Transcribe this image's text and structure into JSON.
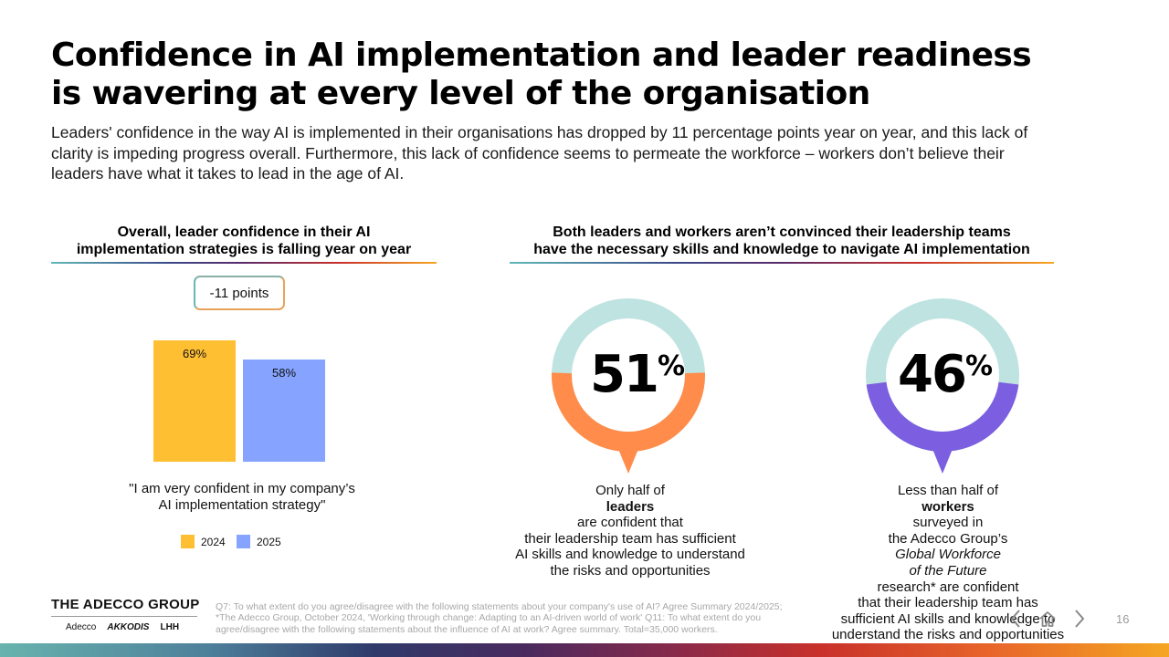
{
  "title": {
    "line1": "Confidence in AI implementation and leader readiness",
    "line2": "is wavering at every level of the organisation"
  },
  "intro": "Leaders' confidence in the way AI is implemented in their organisations has dropped by 11 percentage points year on year, and this lack of clarity is impeding progress overall. Furthermore, this lack of confidence seems to permeate the workforce – workers don’t believe their leaders have what it takes to lead in the age of AI.",
  "left_section": {
    "heading_line1": "Overall, leader confidence in their AI",
    "heading_line2": "implementation strategies is falling year on year",
    "change_pill": "-11 points",
    "quote_line1": "\"I am very confident in my company’s",
    "quote_line2": "AI implementation strategy\"",
    "legend": [
      {
        "label": "2024",
        "color": "#FFBF33"
      },
      {
        "label": "2025",
        "color": "#85A3FF"
      }
    ]
  },
  "chart_data": {
    "type": "bar",
    "categories": [
      "2024",
      "2025"
    ],
    "values": [
      69,
      58
    ],
    "labels": [
      "69%",
      "58%"
    ],
    "colors": [
      "#FFBF33",
      "#85A3FF"
    ],
    "ylim": [
      0,
      100
    ]
  },
  "right_section": {
    "heading_line1": "Both leaders and workers aren’t convinced their leadership teams",
    "heading_line2": "have the necessary skills and knowledge to navigate AI implementation"
  },
  "donuts": [
    {
      "value": 51,
      "number": "51",
      "percent_sign": "%",
      "track_color": "#BEE3E1",
      "fill_color": "#FF8C4A",
      "caption_pre": "Only half of ",
      "caption_bold": "leaders",
      "caption_post": " are confident that",
      "caption_line2": "their leadership team has sufficient",
      "caption_line3": "AI skills and knowledge to understand",
      "caption_line4": "the risks and opportunities"
    },
    {
      "value": 46,
      "number": "46",
      "percent_sign": "%",
      "track_color": "#BEE3E1",
      "fill_color": "#7B5FE0",
      "caption_pre": "Less than half of ",
      "caption_bold": "workers",
      "caption_post": " surveyed in",
      "caption_line2_pre": "the Adecco Group’s ",
      "caption_line2_italic": "Global Workforce",
      "caption_line3_italic": "of the Future",
      "caption_line3_post": " research* are confident",
      "caption_line4": "that their leadership team has",
      "caption_line5": "sufficient AI skills and knowledge to",
      "caption_line6": "understand the risks and opportunities"
    }
  ],
  "footer": {
    "brand": "THE ADECCO GROUP",
    "sub_brands": [
      "Adecco",
      "AKKODIS",
      "LHH"
    ],
    "footnote_line1": "Q7: To what extent do you agree/disagree with the following statements about your company's use of AI? Agree Summary 2024/2025;",
    "footnote_line2": "*The Adecco Group, October 2024, 'Working through change: Adapting to an AI-driven world of work' Q11: To what extent do you",
    "footnote_line3": "agree/disagree with the following statements about the influence of AI at work? Agree summary. Total=35,000 workers.",
    "page_number": "16",
    "nav_icons": [
      "chevron-left-icon",
      "home-icon",
      "chevron-right-icon"
    ]
  }
}
